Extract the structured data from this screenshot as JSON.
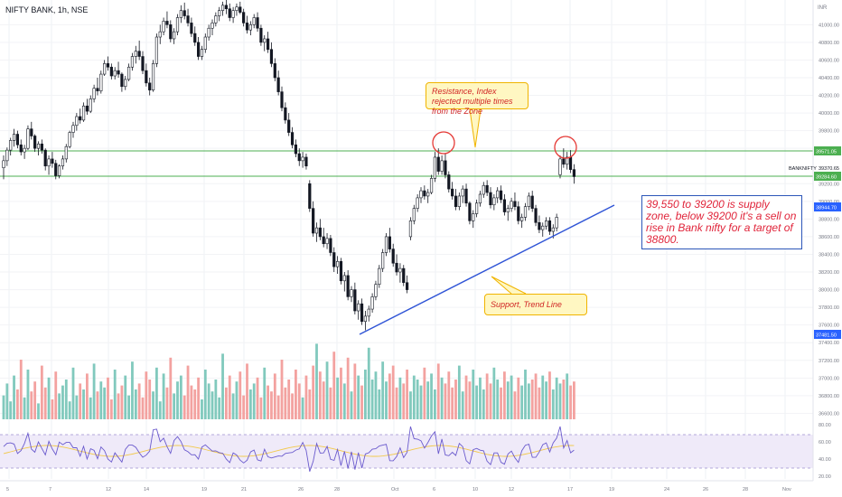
{
  "header": {
    "title": "NIFTY BANK, 1h, NSE",
    "currency": "INR"
  },
  "annotations": {
    "resistance_note": "Resistance, Index rejected multiple times from the Zone",
    "support_note": "Support, Trend Line",
    "analysis_note": "39,550 to 39200 is supply zone, below 39200 it's a sell on rise in Bank nifty for a target of 38800."
  },
  "price_labels": {
    "upper_level": "39571.05",
    "lower_level": "39284.60",
    "symbol": "BANKNIFTY",
    "last": "39370.65",
    "target": "38944.70",
    "low": "37481.50"
  },
  "colors": {
    "up": "#ffffff",
    "down": "#131722",
    "level": "#4caf50",
    "trend": "#2f54d6",
    "circle": "#e53935",
    "vol_up": "#81c9bd",
    "vol_down": "#f3a2a0",
    "rsi": "#6a5acd",
    "rsi_ma": "#f2c94c"
  },
  "chart_data": {
    "type": "candlestick",
    "title": "NIFTY BANK, 1h, NSE",
    "y_price_range": [
      37300,
      41300
    ],
    "y_ticks": [
      "41000.00",
      "40800.00",
      "40600.00",
      "40400.00",
      "40200.00",
      "40000.00",
      "39800.00",
      "39600.00",
      "39200.00",
      "39000.00",
      "38800.00",
      "38600.00",
      "38400.00",
      "38200.00",
      "38000.00",
      "37800.00",
      "37600.00",
      "37400.00",
      "37200.00",
      "37000.00",
      "36800.00",
      "36600.00"
    ],
    "rsi_ticks": [
      "80.00",
      "60.00",
      "40.00",
      "20.00"
    ],
    "x_ticks": [
      "5",
      "7",
      "12",
      "14",
      "19",
      "21",
      "26",
      "28",
      "Oct",
      "6",
      "10",
      "12",
      "17",
      "19",
      "24",
      "26",
      "28",
      "Nov"
    ],
    "levels": {
      "resistance": 39571.05,
      "support_zone_low": 39284.6
    },
    "trend_line": {
      "from": 37540,
      "to": 38790
    },
    "candles": [
      [
        39380,
        39520,
        39250,
        39460
      ],
      [
        39460,
        39610,
        39400,
        39580
      ],
      [
        39580,
        39720,
        39520,
        39690
      ],
      [
        39690,
        39820,
        39620,
        39760
      ],
      [
        39760,
        39800,
        39600,
        39640
      ],
      [
        39640,
        39700,
        39520,
        39560
      ],
      [
        39560,
        39640,
        39480,
        39600
      ],
      [
        39600,
        39860,
        39580,
        39820
      ],
      [
        39820,
        39900,
        39700,
        39740
      ],
      [
        39740,
        39760,
        39560,
        39600
      ],
      [
        39600,
        39680,
        39520,
        39650
      ],
      [
        39650,
        39700,
        39540,
        39580
      ],
      [
        39580,
        39600,
        39350,
        39400
      ],
      [
        39400,
        39520,
        39300,
        39480
      ],
      [
        39480,
        39560,
        39380,
        39430
      ],
      [
        39430,
        39470,
        39250,
        39290
      ],
      [
        39290,
        39420,
        39260,
        39400
      ],
      [
        39400,
        39520,
        39360,
        39480
      ],
      [
        39480,
        39650,
        39440,
        39620
      ],
      [
        39620,
        39800,
        39600,
        39780
      ],
      [
        39780,
        39900,
        39720,
        39860
      ],
      [
        39860,
        40000,
        39800,
        39960
      ],
      [
        39960,
        40050,
        39880,
        39920
      ],
      [
        39920,
        40120,
        39900,
        40080
      ],
      [
        40080,
        40160,
        39980,
        40020
      ],
      [
        40020,
        40200,
        40000,
        40160
      ],
      [
        40160,
        40320,
        40120,
        40280
      ],
      [
        40280,
        40400,
        40200,
        40250
      ],
      [
        40250,
        40480,
        40220,
        40440
      ],
      [
        40440,
        40600,
        40420,
        40560
      ],
      [
        40560,
        40640,
        40480,
        40520
      ],
      [
        40520,
        40560,
        40380,
        40420
      ],
      [
        40420,
        40520,
        40380,
        40480
      ],
      [
        40480,
        40580,
        40400,
        40440
      ],
      [
        40440,
        40460,
        40240,
        40300
      ],
      [
        40300,
        40420,
        40260,
        40380
      ],
      [
        40380,
        40560,
        40360,
        40520
      ],
      [
        40520,
        40680,
        40480,
        40640
      ],
      [
        40640,
        40760,
        40560,
        40700
      ],
      [
        40700,
        40820,
        40600,
        40640
      ],
      [
        40640,
        40700,
        40440,
        40480
      ],
      [
        40480,
        40560,
        40300,
        40340
      ],
      [
        40340,
        40400,
        40200,
        40260
      ],
      [
        40260,
        40600,
        40240,
        40560
      ],
      [
        40560,
        40900,
        40520,
        40860
      ],
      [
        40860,
        41000,
        40780,
        40920
      ],
      [
        40920,
        41080,
        40880,
        41040
      ],
      [
        41040,
        41150,
        40960,
        41000
      ],
      [
        41000,
        41050,
        40800,
        40840
      ],
      [
        40840,
        40960,
        40780,
        40920
      ],
      [
        40920,
        41120,
        40880,
        41080
      ],
      [
        41080,
        41220,
        41020,
        41160
      ],
      [
        41160,
        41250,
        41060,
        41100
      ],
      [
        41100,
        41180,
        40980,
        41020
      ],
      [
        41020,
        41080,
        40860,
        40900
      ],
      [
        40900,
        40980,
        40760,
        40800
      ],
      [
        40800,
        40860,
        40600,
        40640
      ],
      [
        40640,
        40760,
        40600,
        40720
      ],
      [
        40720,
        40900,
        40680,
        40860
      ],
      [
        40860,
        41000,
        40820,
        40960
      ],
      [
        40960,
        41060,
        40880,
        41020
      ],
      [
        41020,
        41140,
        40980,
        41100
      ],
      [
        41100,
        41200,
        41040,
        41160
      ],
      [
        41160,
        41260,
        41100,
        41220
      ],
      [
        41220,
        41280,
        41120,
        41180
      ],
      [
        41180,
        41240,
        41040,
        41080
      ],
      [
        41080,
        41200,
        41020,
        41160
      ],
      [
        41160,
        41240,
        41100,
        41200
      ],
      [
        41200,
        41260,
        41120,
        41140
      ],
      [
        41140,
        41180,
        40980,
        41020
      ],
      [
        41020,
        41100,
        40900,
        40940
      ],
      [
        40940,
        41040,
        40880,
        41000
      ],
      [
        41000,
        41120,
        40960,
        41080
      ],
      [
        41080,
        41140,
        40920,
        40960
      ],
      [
        40960,
        41000,
        40760,
        40800
      ],
      [
        40800,
        40880,
        40700,
        40840
      ],
      [
        40840,
        40920,
        40680,
        40720
      ],
      [
        40720,
        40800,
        40520,
        40560
      ],
      [
        40560,
        40620,
        40360,
        40400
      ],
      [
        40400,
        40480,
        40200,
        40240
      ],
      [
        40240,
        40300,
        40020,
        40060
      ],
      [
        40060,
        40120,
        39880,
        39920
      ],
      [
        39920,
        40000,
        39740,
        39780
      ],
      [
        39780,
        39840,
        39600,
        39640
      ],
      [
        39640,
        39700,
        39500,
        39540
      ],
      [
        39540,
        39600,
        39400,
        39460
      ],
      [
        39460,
        39560,
        39380,
        39500
      ],
      [
        39500,
        39540,
        39360,
        39400
      ],
      [
        39200,
        39240,
        38880,
        38920
      ],
      [
        38920,
        39000,
        38600,
        38640
      ],
      [
        38640,
        38760,
        38540,
        38700
      ],
      [
        38700,
        38800,
        38560,
        38600
      ],
      [
        38600,
        38700,
        38480,
        38520
      ],
      [
        38520,
        38640,
        38460,
        38580
      ],
      [
        38580,
        38620,
        38380,
        38420
      ],
      [
        38420,
        38480,
        38200,
        38260
      ],
      [
        38260,
        38380,
        38180,
        38320
      ],
      [
        38320,
        38360,
        38060,
        38100
      ],
      [
        38100,
        38200,
        37980,
        38160
      ],
      [
        38160,
        38220,
        37880,
        37920
      ],
      [
        37920,
        38040,
        37860,
        38000
      ],
      [
        38000,
        38080,
        37720,
        37760
      ],
      [
        37760,
        37880,
        37660,
        37840
      ],
      [
        37840,
        37900,
        37600,
        37640
      ],
      [
        37640,
        37760,
        37540,
        37700
      ],
      [
        37700,
        37820,
        37640,
        37780
      ],
      [
        37780,
        37960,
        37740,
        37920
      ],
      [
        37920,
        38100,
        37880,
        38060
      ],
      [
        38060,
        38280,
        38020,
        38240
      ],
      [
        38240,
        38460,
        38200,
        38420
      ],
      [
        38420,
        38640,
        38380,
        38600
      ],
      [
        38600,
        38700,
        38420,
        38460
      ],
      [
        38460,
        38520,
        38260,
        38300
      ],
      [
        38300,
        38400,
        38160,
        38200
      ],
      [
        38200,
        38300,
        38080,
        38240
      ],
      [
        38240,
        38280,
        38040,
        38080
      ],
      [
        38080,
        38160,
        37960,
        38000
      ],
      [
        38600,
        38820,
        38560,
        38780
      ],
      [
        38780,
        38960,
        38740,
        38920
      ],
      [
        38920,
        39080,
        38880,
        39040
      ],
      [
        39040,
        39160,
        38980,
        39120
      ],
      [
        39120,
        39180,
        39020,
        39060
      ],
      [
        39060,
        39140,
        38980,
        39100
      ],
      [
        39100,
        39300,
        39080,
        39260
      ],
      [
        39260,
        39560,
        39220,
        39500
      ],
      [
        39500,
        39600,
        39300,
        39340
      ],
      [
        39340,
        39520,
        39300,
        39460
      ],
      [
        39460,
        39540,
        39260,
        39300
      ],
      [
        39300,
        39340,
        39100,
        39140
      ],
      [
        39140,
        39220,
        39020,
        39060
      ],
      [
        39060,
        39140,
        38900,
        38940
      ],
      [
        38940,
        39100,
        38900,
        39060
      ],
      [
        39060,
        39180,
        38980,
        39140
      ],
      [
        39140,
        39200,
        38940,
        38980
      ],
      [
        38980,
        39000,
        38740,
        38780
      ],
      [
        38780,
        38900,
        38700,
        38860
      ],
      [
        38860,
        39020,
        38820,
        38980
      ],
      [
        38980,
        39120,
        38940,
        39080
      ],
      [
        39080,
        39220,
        39040,
        39180
      ],
      [
        39180,
        39240,
        39060,
        39100
      ],
      [
        39100,
        39160,
        38920,
        38960
      ],
      [
        38960,
        39080,
        38900,
        39040
      ],
      [
        39040,
        39160,
        38980,
        39120
      ],
      [
        39120,
        39180,
        38980,
        39020
      ],
      [
        39020,
        39080,
        38840,
        38880
      ],
      [
        38880,
        38960,
        38780,
        38920
      ],
      [
        38920,
        39040,
        38880,
        39000
      ],
      [
        39000,
        39100,
        38900,
        38940
      ],
      [
        38940,
        39000,
        38740,
        38780
      ],
      [
        38780,
        38860,
        38700,
        38820
      ],
      [
        38820,
        38980,
        38780,
        38940
      ],
      [
        38940,
        39100,
        38900,
        39060
      ],
      [
        39060,
        39120,
        38880,
        38920
      ],
      [
        38920,
        38960,
        38720,
        38760
      ],
      [
        38760,
        38840,
        38640,
        38680
      ],
      [
        38680,
        38760,
        38600,
        38720
      ],
      [
        38720,
        38820,
        38680,
        38780
      ],
      [
        38780,
        38820,
        38620,
        38660
      ],
      [
        38660,
        38740,
        38580,
        38700
      ],
      [
        38700,
        38860,
        38660,
        38820
      ],
      [
        39300,
        39520,
        39260,
        39480
      ],
      [
        39480,
        39600,
        39380,
        39420
      ],
      [
        39420,
        39560,
        39360,
        39500
      ],
      [
        39500,
        39580,
        39320,
        39360
      ],
      [
        39360,
        39420,
        39200,
        39280
      ]
    ],
    "volume": [
      12,
      18,
      9,
      22,
      15,
      30,
      11,
      25,
      14,
      19,
      8,
      27,
      16,
      21,
      10,
      24,
      13,
      17,
      20,
      9,
      26,
      12,
      18,
      15,
      23,
      11,
      28,
      14,
      19,
      16,
      21,
      10,
      25,
      13,
      17,
      22,
      12,
      29,
      15,
      18,
      11,
      24,
      20,
      14,
      26,
      9,
      23,
      16,
      31,
      13,
      19,
      22,
      12,
      27,
      17,
      15,
      21,
      10,
      25,
      18,
      14,
      20,
      11,
      33,
      16,
      22,
      13,
      19,
      24,
      12,
      28,
      15,
      18,
      21,
      11,
      26,
      17,
      14,
      23,
      12,
      30,
      16,
      20,
      13,
      25,
      18,
      11,
      22,
      15,
      27,
      38,
      24,
      19,
      29,
      16,
      34,
      21,
      26,
      18,
      31,
      14,
      28,
      22,
      17,
      25,
      36,
      20,
      24,
      15,
      29,
      19,
      23,
      27,
      16,
      21,
      18,
      25,
      14,
      22,
      20,
      17,
      26,
      19,
      23,
      15,
      28,
      21,
      18,
      24,
      16,
      20,
      27,
      14,
      22,
      19,
      25,
      17,
      21,
      15,
      23,
      18,
      26,
      20,
      16,
      24,
      19,
      22,
      14,
      21,
      17,
      25,
      18,
      20,
      23,
      16,
      22,
      19,
      24,
      15,
      21,
      18,
      20,
      23,
      17,
      19
    ]
  }
}
